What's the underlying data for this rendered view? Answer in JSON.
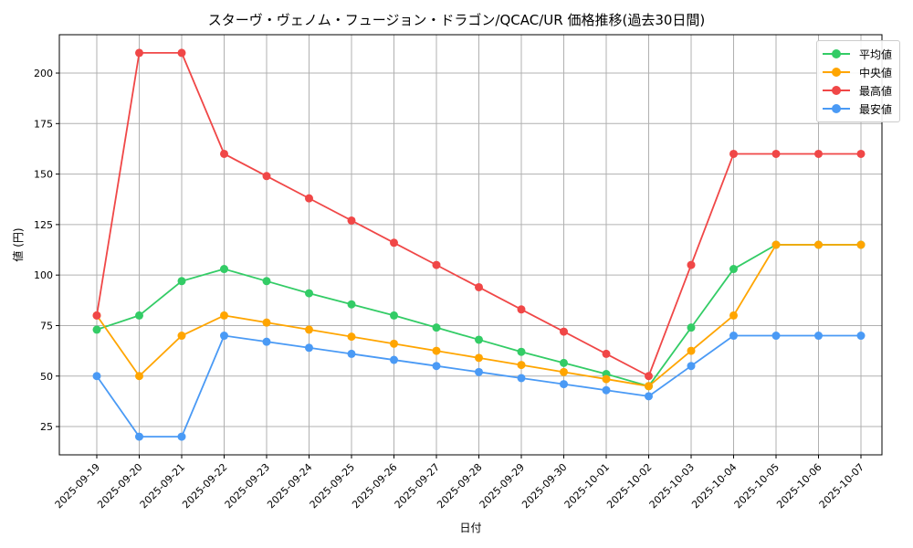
{
  "chart_data": {
    "type": "line",
    "title": "スターヴ・ヴェノム・フュージョン・ドラゴン/QCAC/UR 価格推移(過去30日間)",
    "xlabel": "日付",
    "ylabel": "値 (円)",
    "ylim": [
      11,
      219
    ],
    "yticks": [
      25,
      50,
      75,
      100,
      125,
      150,
      175,
      200
    ],
    "grid": true,
    "legend_position": "top-right",
    "categories": [
      "2025-09-19",
      "2025-09-20",
      "2025-09-21",
      "2025-09-22",
      "2025-09-23",
      "2025-09-24",
      "2025-09-25",
      "2025-09-26",
      "2025-09-27",
      "2025-09-28",
      "2025-09-29",
      "2025-09-30",
      "2025-10-01",
      "2025-10-02",
      "2025-10-03",
      "2025-10-04",
      "2025-10-05",
      "2025-10-06",
      "2025-10-07"
    ],
    "series": [
      {
        "name": "平均値",
        "color": "#33cc66",
        "values": [
          73,
          80,
          97,
          103,
          97,
          91,
          85.5,
          80,
          74,
          68,
          62,
          56.5,
          51,
          45,
          74,
          103,
          115,
          115,
          115
        ]
      },
      {
        "name": "中央値",
        "color": "#ffa500",
        "values": [
          80,
          50,
          70,
          80,
          76.5,
          73,
          69.5,
          66,
          62.5,
          59,
          55.5,
          52,
          48.5,
          45,
          62.5,
          80,
          115,
          115,
          115
        ]
      },
      {
        "name": "最高値",
        "color": "#f04747",
        "values": [
          80,
          210,
          210,
          160,
          149,
          138,
          127,
          116,
          105,
          94,
          83,
          72,
          61,
          50,
          105,
          160,
          160,
          160,
          160
        ]
      },
      {
        "name": "最安値",
        "color": "#4a9af5",
        "values": [
          50,
          20,
          20,
          70,
          67,
          64,
          61,
          58,
          55,
          52,
          49,
          46,
          43,
          40,
          55,
          70,
          70,
          70,
          70
        ]
      }
    ]
  }
}
